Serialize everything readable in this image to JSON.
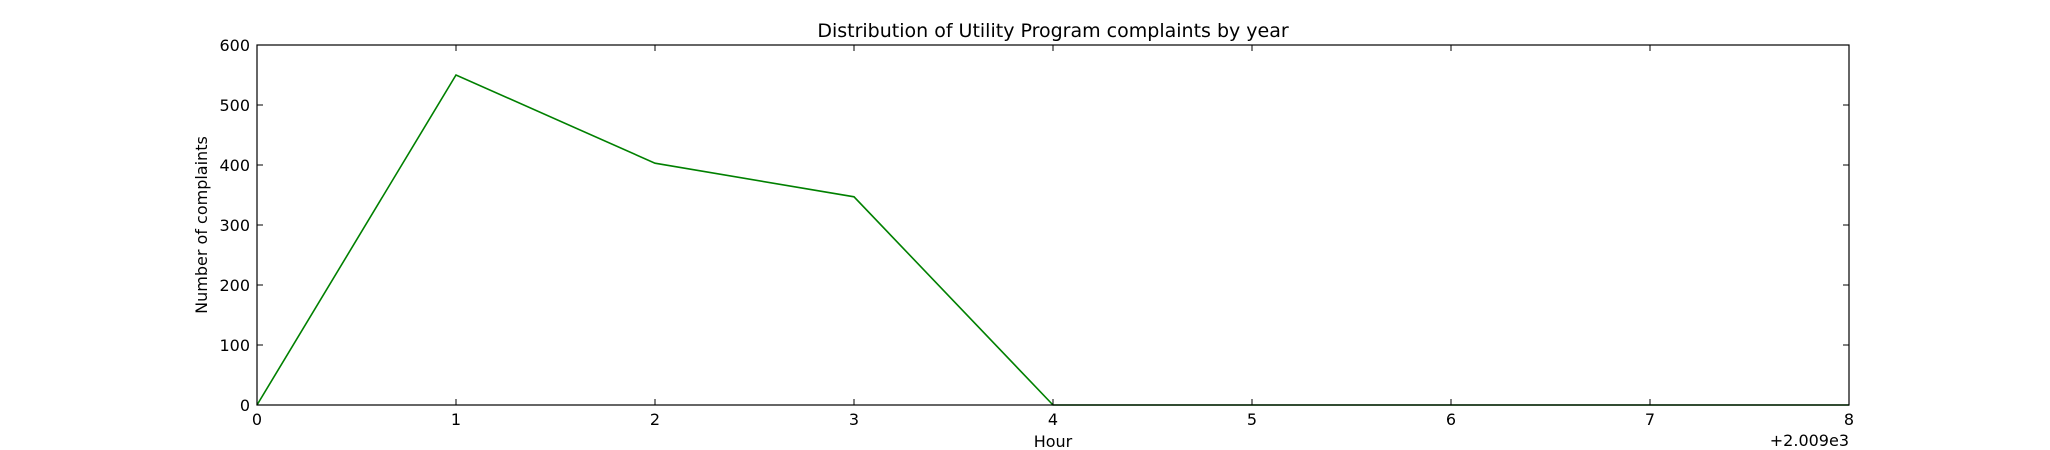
{
  "chart_data": {
    "type": "line",
    "title": "Distribution of  Utility Program complaints by year",
    "xlabel": "Hour",
    "ylabel": "Number of complaints",
    "x_offset_label": "+2.009e3",
    "xlim": [
      0,
      8
    ],
    "ylim": [
      0,
      600
    ],
    "x_ticks": [
      0,
      1,
      2,
      3,
      4,
      5,
      6,
      7,
      8
    ],
    "x_tick_labels": [
      "0",
      "1",
      "2",
      "3",
      "4",
      "5",
      "6",
      "7",
      "8"
    ],
    "y_ticks": [
      0,
      100,
      200,
      300,
      400,
      500,
      600
    ],
    "y_tick_labels": [
      "0",
      "100",
      "200",
      "300",
      "400",
      "500",
      "600"
    ],
    "grid": false,
    "series": [
      {
        "color": "#008000",
        "x": [
          0,
          1,
          2,
          3,
          4,
          5,
          6,
          7,
          8
        ],
        "values": [
          0,
          550,
          403,
          347,
          0,
          0,
          0,
          0,
          0
        ]
      }
    ]
  }
}
